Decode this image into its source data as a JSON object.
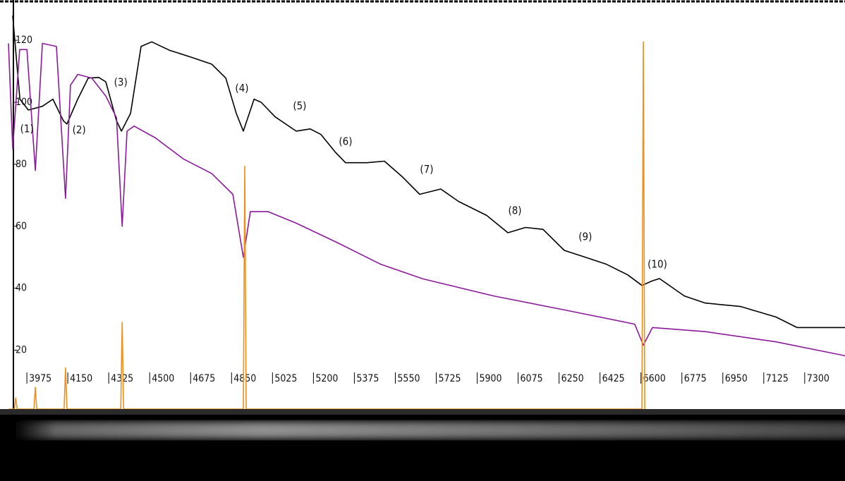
{
  "chart_data": {
    "type": "line",
    "xlim": [
      3833,
      7415
    ],
    "ylim": [
      1,
      133
    ],
    "xticks": [
      3975,
      4150,
      4325,
      4500,
      4675,
      4850,
      5025,
      5200,
      5375,
      5550,
      5725,
      5900,
      6075,
      6250,
      6425,
      6600,
      6775,
      6950,
      7125,
      7300
    ],
    "yticks": [
      20,
      40,
      60,
      80,
      100,
      120
    ],
    "grid": false,
    "series": [
      {
        "color": "#000000",
        "x": [
          3857,
          3888,
          3924,
          3984,
          4029,
          4074,
          4089,
          4135,
          4180,
          4225,
          4255,
          4301,
          4322,
          4361,
          4406,
          4451,
          4527,
          4617,
          4708,
          4768,
          4813,
          4843,
          4889,
          4919,
          4979,
          5069,
          5129,
          5175,
          5235,
          5280,
          5371,
          5446,
          5522,
          5597,
          5687,
          5763,
          5883,
          5974,
          6049,
          6124,
          6215,
          6305,
          6396,
          6486,
          6547,
          6592,
          6622,
          6728,
          6818,
          6969,
          7120,
          7210,
          7300,
          7415
        ],
        "values": [
          128,
          101,
          97.5,
          98.7,
          101,
          94,
          93,
          101,
          107.8,
          108,
          106.6,
          94,
          90.7,
          96.4,
          118,
          119.5,
          116.8,
          114.6,
          112.3,
          107.8,
          96.4,
          90.7,
          101,
          100,
          95.3,
          90.7,
          91.4,
          89.6,
          84,
          80.5,
          80.5,
          81,
          76,
          70.3,
          72,
          68,
          63.5,
          57.9,
          59.6,
          59,
          52.2,
          50,
          47.7,
          44.3,
          40.9,
          42.4,
          43.1,
          37.5,
          35.2,
          34.1,
          30.7,
          27.3,
          27.3,
          27.3
        ]
      },
      {
        "color": "#8b1a9b",
        "x": [
          3839,
          3857,
          3887,
          3918,
          3954,
          3984,
          4044,
          4083,
          4104,
          4135,
          4195,
          4255,
          4301,
          4325,
          4346,
          4376,
          4467,
          4587,
          4708,
          4798,
          4843,
          4873,
          4949,
          5069,
          5250,
          5431,
          5612,
          5913,
          6215,
          6516,
          6553,
          6592,
          6818,
          7120,
          7415
        ],
        "values": [
          119,
          85,
          117,
          117,
          78,
          119,
          118,
          69,
          105.5,
          109,
          107.8,
          102,
          95,
          60,
          90.7,
          92.3,
          88.5,
          81.7,
          77,
          70.3,
          50,
          64.7,
          64.7,
          61,
          54.5,
          47.7,
          43,
          37.5,
          33,
          28.4,
          21.6,
          27.3,
          26,
          22.7,
          18.2
        ]
      },
      {
        "color": "#f0901a",
        "x": [
          3840,
          3864,
          3870,
          3876,
          3948,
          3954,
          3960,
          4077,
          4083,
          4089,
          4319,
          4325,
          4331,
          4843,
          4849,
          4855,
          6547,
          6553,
          6559
        ],
        "values": [
          1,
          1,
          4.6,
          1,
          1,
          8,
          1,
          1,
          14.3,
          1,
          1,
          29,
          1,
          1,
          79.4,
          1,
          1,
          119.5,
          1
        ]
      }
    ],
    "annotations": [
      {
        "text": "(1)",
        "x": 3918,
        "y": 91.4
      },
      {
        "text": "(2)",
        "x": 4141,
        "y": 91
      },
      {
        "text": "(3)",
        "x": 4319,
        "y": 106.4
      },
      {
        "text": "(4)",
        "x": 4837,
        "y": 104.4
      },
      {
        "text": "(5)",
        "x": 5084,
        "y": 98.7
      },
      {
        "text": "(6)",
        "x": 5280,
        "y": 87.3
      },
      {
        "text": "(7)",
        "x": 5627,
        "y": 78.3
      },
      {
        "text": "(8)",
        "x": 6004,
        "y": 65
      },
      {
        "text": "(9)",
        "x": 6305,
        "y": 56.5
      },
      {
        "text": "(10)",
        "x": 6613,
        "y": 47.7
      }
    ]
  }
}
